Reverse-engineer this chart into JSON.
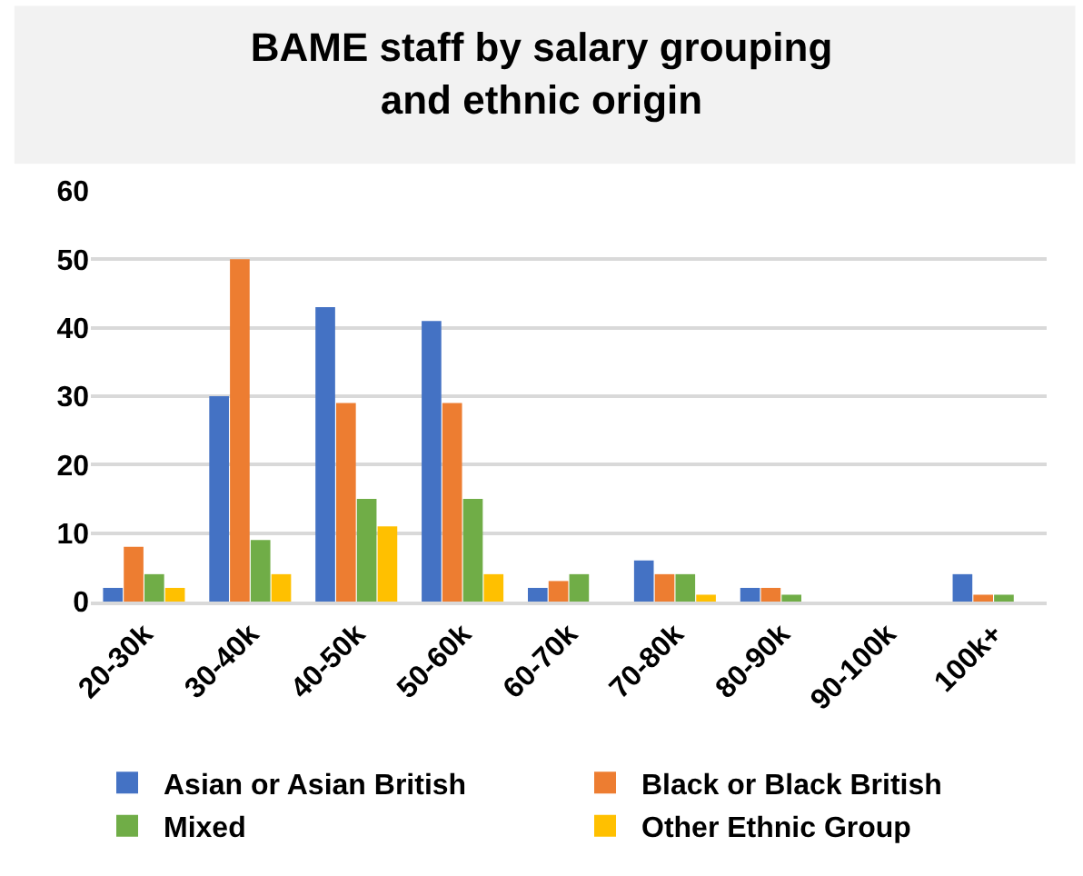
{
  "chart_data": {
    "type": "bar",
    "title": "BAME staff by salary grouping\nand ethnic origin",
    "categories": [
      "20-30k",
      "30-40k",
      "40-50k",
      "50-60k",
      "60-70k",
      "70-80k",
      "80-90k",
      "90-100k",
      "100k+"
    ],
    "series": [
      {
        "name": "Asian or Asian British",
        "color": "#4472c4",
        "values": [
          2,
          30,
          43,
          41,
          2,
          6,
          2,
          0,
          4
        ]
      },
      {
        "name": "Black or Black British",
        "color": "#ed7d31",
        "values": [
          8,
          50,
          29,
          29,
          3,
          4,
          2,
          0,
          1
        ]
      },
      {
        "name": "Mixed",
        "color": "#70ad47",
        "values": [
          4,
          9,
          15,
          15,
          4,
          4,
          1,
          0,
          1
        ]
      },
      {
        "name": "Other Ethnic Group",
        "color": "#ffc000",
        "values": [
          2,
          4,
          11,
          4,
          0,
          1,
          0,
          0,
          0
        ]
      }
    ],
    "ylim": [
      0,
      60
    ],
    "yticks": [
      0,
      10,
      20,
      30,
      40,
      50,
      60
    ],
    "grid": "y",
    "legend": "bottom"
  }
}
